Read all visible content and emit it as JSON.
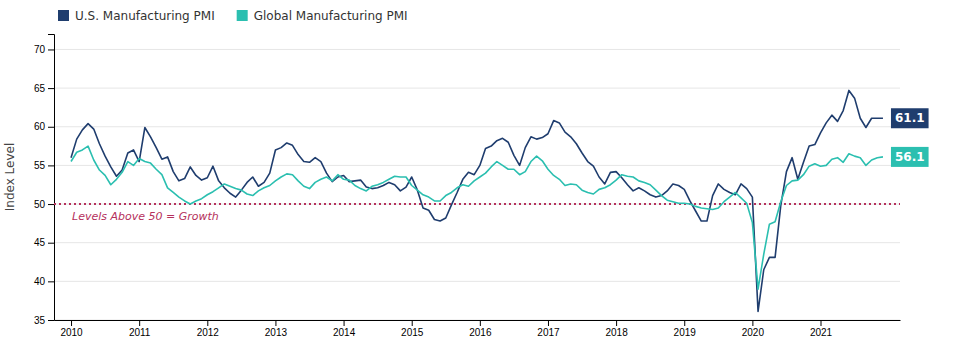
{
  "chart_data": {
    "type": "line",
    "ylabel": "Index Level",
    "ylim": [
      35,
      72
    ],
    "yticks": [
      35,
      40,
      45,
      50,
      55,
      60,
      65,
      70
    ],
    "grid": true,
    "legend": "top-left",
    "reference_line": {
      "y": 50,
      "color": "#B5305C",
      "line_style": "dotted",
      "label": "Levels Above 50 = Growth"
    },
    "categories": [
      "2010",
      null,
      null,
      null,
      null,
      null,
      null,
      null,
      null,
      null,
      null,
      null,
      "2011",
      null,
      null,
      null,
      null,
      null,
      null,
      null,
      null,
      null,
      null,
      null,
      "2012",
      null,
      null,
      null,
      null,
      null,
      null,
      null,
      null,
      null,
      null,
      null,
      "2013",
      null,
      null,
      null,
      null,
      null,
      null,
      null,
      null,
      null,
      null,
      null,
      "2014",
      null,
      null,
      null,
      null,
      null,
      null,
      null,
      null,
      null,
      null,
      null,
      "2015",
      null,
      null,
      null,
      null,
      null,
      null,
      null,
      null,
      null,
      null,
      null,
      "2016",
      null,
      null,
      null,
      null,
      null,
      null,
      null,
      null,
      null,
      null,
      null,
      "2017",
      null,
      null,
      null,
      null,
      null,
      null,
      null,
      null,
      null,
      null,
      null,
      "2018",
      null,
      null,
      null,
      null,
      null,
      null,
      null,
      null,
      null,
      null,
      null,
      "2019",
      null,
      null,
      null,
      null,
      null,
      null,
      null,
      null,
      null,
      null,
      null,
      "2020",
      null,
      null,
      null,
      null,
      null,
      null,
      null,
      null,
      null,
      null,
      null,
      "2021",
      null,
      null,
      null,
      null,
      null,
      null,
      null,
      null,
      null,
      null,
      null
    ],
    "series": [
      {
        "name": "U.S. Manufacturing PMI",
        "color": "#1F3D6E",
        "end_label": "61.1",
        "values": [
          56.0,
          58.4,
          59.6,
          60.4,
          59.7,
          57.8,
          56.2,
          54.8,
          53.6,
          54.4,
          56.6,
          57.0,
          55.5,
          59.9,
          58.7,
          57.3,
          55.8,
          56.1,
          54.2,
          53.0,
          53.3,
          54.8,
          53.7,
          53.1,
          53.4,
          54.9,
          53.0,
          52.1,
          51.4,
          50.9,
          51.8,
          52.8,
          53.5,
          52.3,
          52.8,
          54.0,
          57.0,
          57.3,
          57.9,
          57.6,
          56.4,
          55.5,
          55.4,
          56.0,
          55.5,
          54.0,
          52.9,
          53.5,
          53.7,
          52.9,
          53.0,
          53.1,
          52.2,
          52.0,
          52.1,
          52.4,
          52.8,
          52.5,
          51.7,
          52.2,
          53.5,
          51.8,
          49.5,
          49.2,
          48.0,
          47.8,
          48.2,
          49.9,
          51.5,
          53.2,
          54.1,
          53.8,
          55.0,
          57.2,
          57.5,
          58.2,
          58.5,
          58.0,
          56.3,
          55.0,
          57.3,
          58.7,
          58.4,
          58.6,
          59.1,
          60.8,
          60.5,
          59.3,
          58.7,
          57.8,
          56.6,
          55.5,
          54.9,
          53.5,
          52.6,
          54.1,
          54.2,
          53.4,
          52.5,
          51.7,
          52.1,
          51.7,
          51.2,
          50.9,
          51.1,
          51.7,
          52.6,
          52.4,
          51.9,
          50.4,
          49.1,
          47.8,
          47.8,
          51.1,
          52.6,
          51.9,
          51.5,
          51.2,
          52.6,
          52.0,
          50.9,
          36.1,
          41.5,
          43.1,
          43.1,
          49.8,
          54.2,
          56.0,
          53.2,
          55.4,
          57.5,
          57.7,
          59.2,
          60.5,
          61.5,
          60.7,
          62.1,
          64.7,
          63.7,
          61.1,
          59.9,
          61.1,
          61.1,
          61.1
        ]
      },
      {
        "name": "Global Manufacturing PMI",
        "color": "#2BBFB0",
        "end_label": "56.1",
        "values": [
          55.5,
          56.7,
          57.0,
          57.5,
          55.7,
          54.4,
          53.7,
          52.5,
          53.2,
          54.1,
          55.5,
          55.0,
          55.9,
          55.5,
          55.3,
          54.5,
          53.8,
          52.1,
          51.5,
          50.9,
          50.4,
          50.0,
          50.4,
          50.7,
          51.2,
          51.6,
          52.1,
          52.6,
          52.3,
          52.0,
          51.8,
          51.3,
          51.1,
          51.7,
          52.1,
          52.4,
          53.0,
          53.5,
          53.9,
          53.8,
          53.0,
          52.3,
          52.0,
          52.8,
          53.2,
          53.5,
          53.0,
          53.8,
          53.2,
          53.1,
          52.4,
          52.0,
          51.7,
          52.3,
          52.5,
          52.8,
          53.2,
          53.6,
          53.5,
          53.5,
          52.4,
          51.8,
          51.2,
          50.9,
          50.4,
          50.4,
          51.1,
          51.5,
          52.1,
          52.5,
          52.3,
          53.0,
          53.5,
          54.0,
          54.8,
          55.5,
          55.0,
          54.5,
          54.5,
          53.8,
          54.2,
          55.5,
          56.2,
          55.6,
          54.5,
          53.7,
          53.2,
          52.4,
          52.6,
          52.5,
          51.8,
          51.5,
          51.3,
          51.9,
          52.1,
          52.5,
          53.1,
          53.8,
          53.6,
          53.5,
          53.0,
          52.8,
          52.5,
          51.8,
          51.1,
          50.5,
          50.3,
          50.1,
          50.1,
          50.0,
          49.7,
          49.5,
          49.4,
          49.3,
          49.5,
          50.3,
          50.9,
          51.5,
          50.8,
          50.1,
          47.6,
          39.0,
          43.5,
          47.4,
          47.7,
          50.3,
          52.4,
          53.0,
          53.1,
          53.8,
          54.9,
          55.2,
          54.9,
          55.0,
          55.8,
          56.0,
          55.4,
          56.5,
          56.2,
          56.0,
          55.0,
          55.7,
          56.0,
          56.1
        ]
      }
    ]
  }
}
